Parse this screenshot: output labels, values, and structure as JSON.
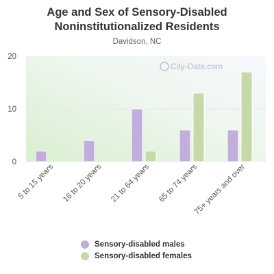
{
  "title_line1": "Age and Sex of Sensory-Disabled",
  "title_line2": "Noninstitutionalized Residents",
  "subtitle": "Davidson, NC",
  "watermark": "City-Data.com",
  "colors": {
    "males": "#c0aedb",
    "females": "#c6d9a8"
  },
  "chart_data": {
    "type": "bar",
    "title": "Age and Sex of Sensory-Disabled Noninstitutionalized Residents",
    "subtitle": "Davidson, NC",
    "categories": [
      "5 to 15 years",
      "16 to 20 years",
      "21 to 64 years",
      "65 to 74 years",
      "75+ years and over"
    ],
    "series": [
      {
        "name": "Sensory-disabled males",
        "values": [
          2,
          4,
          10,
          6,
          6
        ]
      },
      {
        "name": "Sensory-disabled females",
        "values": [
          0,
          0,
          2,
          13,
          17
        ]
      }
    ],
    "yticks": [
      0,
      10,
      20
    ],
    "ylim": [
      0,
      20
    ],
    "xlabel": "",
    "ylabel": "",
    "legend": "bottom"
  }
}
